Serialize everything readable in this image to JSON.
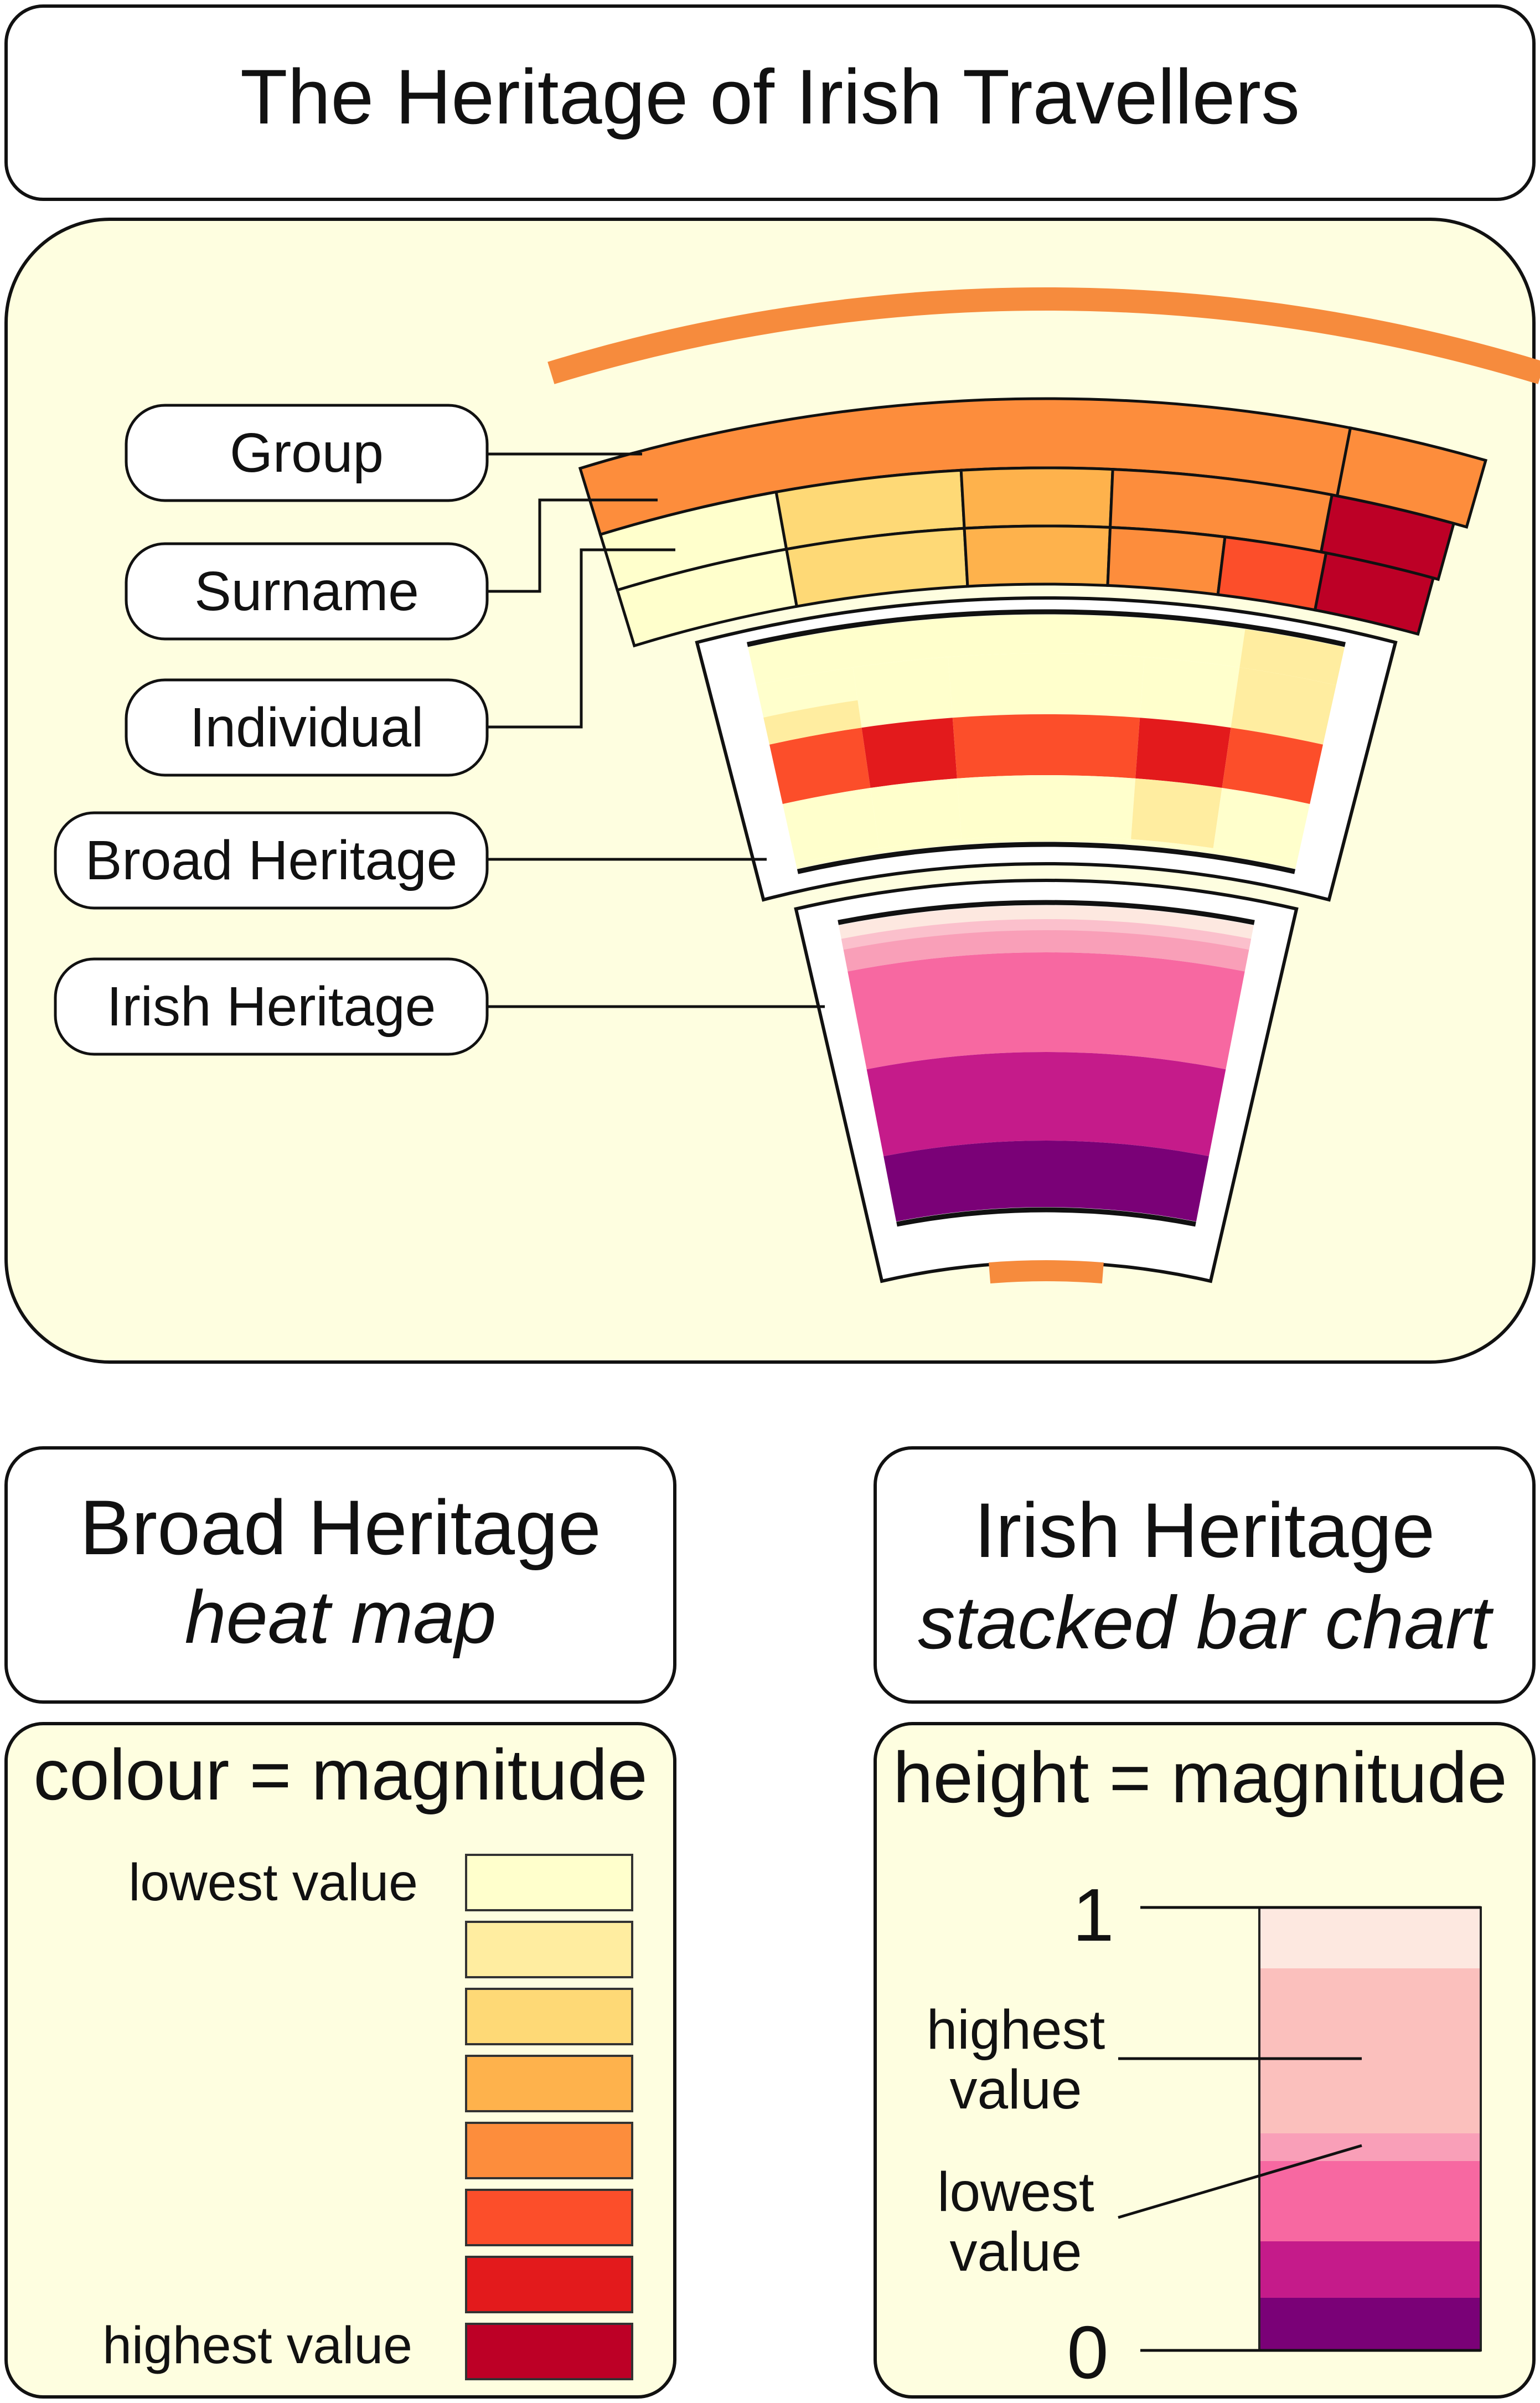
{
  "title": "The Heritage of Irish Travellers",
  "diagram": {
    "labels": {
      "group": "Group",
      "surname": "Surname",
      "individual": "Individual",
      "broad_heritage": "Broad Heritage",
      "irish_heritage": "Irish Heritage"
    },
    "colors": {
      "background": "#fefee0",
      "accent": "#f68b3d",
      "heat_scale": [
        "#ffffcc",
        "#ffeda0",
        "#fed976",
        "#feb24c",
        "#fd8d3c",
        "#fc4e2a",
        "#e31a1c",
        "#bd0026"
      ],
      "stack_scale": [
        "#fde8e0",
        "#fbc0bd",
        "#f99fb8",
        "#f768a1",
        "#c51b8a",
        "#7a0177"
      ]
    }
  },
  "broad_heritage_panel": {
    "title": "Broad Heritage",
    "subtitle": "heat map",
    "legend_title": "colour = magnitude",
    "lowest_label": "lowest value",
    "highest_label": "highest value"
  },
  "irish_heritage_panel": {
    "title": "Irish Heritage",
    "subtitle": "stacked bar chart",
    "legend_title": "height = magnitude",
    "axis_top": "1",
    "axis_bottom": "0",
    "highest_label_line1": "highest",
    "highest_label_line2": "value",
    "lowest_label_line1": "lowest",
    "lowest_label_line2": "value"
  }
}
